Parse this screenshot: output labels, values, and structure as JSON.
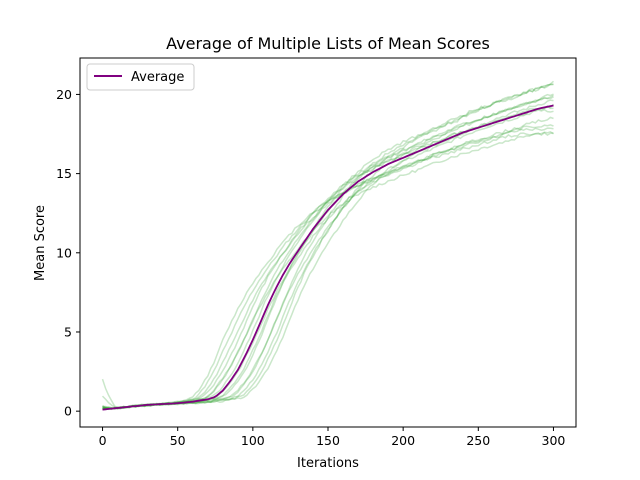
{
  "chart_data": {
    "type": "line",
    "title": "Average of Multiple Lists of Mean Scores",
    "xlabel": "Iterations",
    "ylabel": "Mean Score",
    "xlim": [
      -15,
      315
    ],
    "ylim": [
      -1,
      22.3
    ],
    "xticks": [
      0,
      50,
      100,
      150,
      200,
      250,
      300
    ],
    "yticks": [
      0,
      5,
      10,
      15,
      20
    ],
    "grid": false,
    "legend": {
      "placement": "top-left",
      "entries": [
        "Average"
      ]
    },
    "colors": {
      "runs": "#2ca02c",
      "average": "#800080"
    },
    "average": {
      "name": "Average",
      "x": [
        0,
        10,
        20,
        30,
        40,
        50,
        60,
        70,
        75,
        80,
        85,
        90,
        95,
        100,
        105,
        110,
        115,
        120,
        125,
        130,
        140,
        150,
        160,
        170,
        180,
        190,
        200,
        210,
        220,
        230,
        240,
        250,
        260,
        270,
        280,
        290,
        300
      ],
      "y": [
        0.1,
        0.2,
        0.3,
        0.4,
        0.45,
        0.5,
        0.6,
        0.75,
        0.9,
        1.3,
        1.9,
        2.6,
        3.5,
        4.5,
        5.6,
        6.7,
        7.7,
        8.6,
        9.4,
        10.1,
        11.5,
        12.7,
        13.7,
        14.5,
        15.1,
        15.6,
        16.0,
        16.4,
        16.8,
        17.2,
        17.6,
        17.9,
        18.2,
        18.5,
        18.8,
        19.1,
        19.3
      ]
    },
    "runs": [
      {
        "end": 21.2,
        "shift": -18,
        "k": 1.05,
        "jitter": 0.12,
        "start": 2.0
      },
      {
        "end": 21.0,
        "shift": -12,
        "k": 1.0,
        "jitter": 0.1,
        "start": 0.3
      },
      {
        "end": 20.8,
        "shift": -6,
        "k": 0.98,
        "jitter": 0.1,
        "start": 0.2
      },
      {
        "end": 20.4,
        "shift": -15,
        "k": 1.1,
        "jitter": 0.1,
        "start": 0.2
      },
      {
        "end": 20.0,
        "shift": -4,
        "k": 1.0,
        "jitter": 0.1,
        "start": 1.0
      },
      {
        "end": 19.8,
        "shift": 2,
        "k": 0.95,
        "jitter": 0.1,
        "start": 0.3
      },
      {
        "end": 19.5,
        "shift": -10,
        "k": 1.05,
        "jitter": 0.1,
        "start": 0.2
      },
      {
        "end": 19.2,
        "shift": 6,
        "k": 0.92,
        "jitter": 0.1,
        "start": 0.2
      },
      {
        "end": 19.0,
        "shift": 10,
        "k": 0.9,
        "jitter": 0.12,
        "start": 0.3
      },
      {
        "end": 18.5,
        "shift": 0,
        "k": 1.0,
        "jitter": 0.1,
        "start": 0.2
      },
      {
        "end": 18.0,
        "shift": 14,
        "k": 0.88,
        "jitter": 0.1,
        "start": 0.2
      },
      {
        "end": 17.8,
        "shift": 18,
        "k": 0.85,
        "jitter": 0.1,
        "start": 0.2
      },
      {
        "end": 17.5,
        "shift": 22,
        "k": 0.85,
        "jitter": 0.1,
        "start": 0.3
      },
      {
        "end": 17.6,
        "shift": 8,
        "k": 0.9,
        "jitter": 0.1,
        "start": 0.2
      },
      {
        "end": 20.2,
        "shift": -20,
        "k": 1.1,
        "jitter": 0.1,
        "start": 0.2
      }
    ]
  }
}
